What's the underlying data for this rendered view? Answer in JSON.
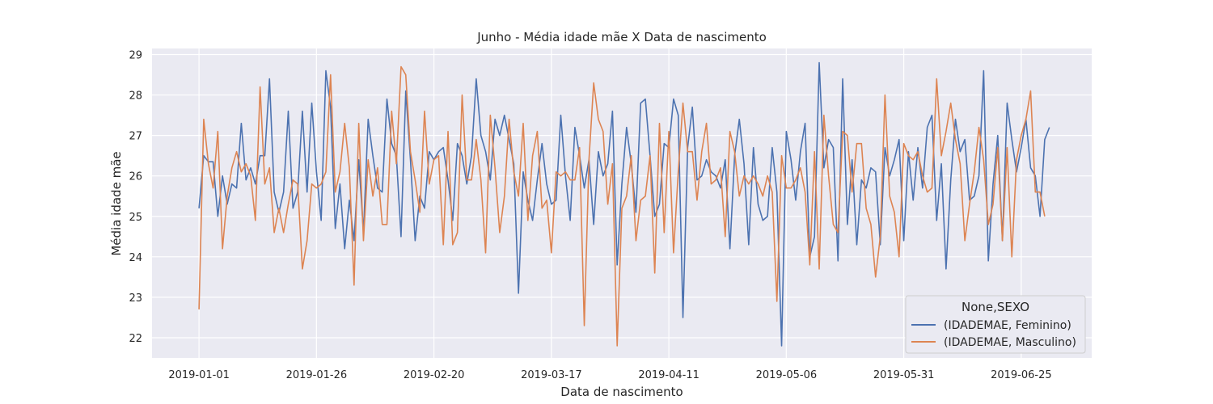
{
  "chart_data": {
    "type": "line",
    "title": "Junho - Média idade mãe X Data de nascimento",
    "xlabel": "Data de nascimento",
    "ylabel": "Média idade mãe",
    "x_start": "2019-01-01",
    "x_end": "2019-06-30",
    "xlim": [
      "2018-12-22",
      "2019-07-10"
    ],
    "ylim": [
      21.5,
      29.15
    ],
    "x_ticks": [
      "2019-01-01",
      "2019-01-26",
      "2019-02-20",
      "2019-03-17",
      "2019-04-11",
      "2019-05-06",
      "2019-05-31",
      "2019-06-25"
    ],
    "y_ticks": [
      22,
      23,
      24,
      25,
      26,
      27,
      28,
      29
    ],
    "grid": true,
    "legend": {
      "title": "None,SEXO",
      "position": "lower-right"
    },
    "series": [
      {
        "name": "(IDADEMAE, Feminino)",
        "color": "#4c72b0",
        "values": [
          25.2,
          26.5,
          26.35,
          26.35,
          25.0,
          26.0,
          25.3,
          25.8,
          25.7,
          27.3,
          25.9,
          26.2,
          25.8,
          26.5,
          26.5,
          28.4,
          25.6,
          25.1,
          25.6,
          27.6,
          25.2,
          25.6,
          27.6,
          25.6,
          27.8,
          26.1,
          24.9,
          28.6,
          27.7,
          24.7,
          25.8,
          24.2,
          25.4,
          24.4,
          26.4,
          24.6,
          27.4,
          26.5,
          25.7,
          25.6,
          27.9,
          26.8,
          26.5,
          24.5,
          28.1,
          26.4,
          24.4,
          25.5,
          25.2,
          26.6,
          26.4,
          26.6,
          26.7,
          25.9,
          24.9,
          26.8,
          26.5,
          25.8,
          26.5,
          28.4,
          27.0,
          26.6,
          25.9,
          27.4,
          27.0,
          27.5,
          26.9,
          26.3,
          23.1,
          26.1,
          25.4,
          24.9,
          25.9,
          26.8,
          25.8,
          25.3,
          25.4,
          27.5,
          26.0,
          24.9,
          27.2,
          26.5,
          25.7,
          26.4,
          24.8,
          26.6,
          26.0,
          26.3,
          27.6,
          23.8,
          25.8,
          27.2,
          26.3,
          25.1,
          27.8,
          27.9,
          26.5,
          25.0,
          25.3,
          26.8,
          26.7,
          27.9,
          27.5,
          22.5,
          26.7,
          27.7,
          25.9,
          26.0,
          26.4,
          26.1,
          26.0,
          25.7,
          26.4,
          24.2,
          26.5,
          27.4,
          26.3,
          24.3,
          26.7,
          25.3,
          24.9,
          25.0,
          26.7,
          25.6,
          21.8,
          27.1,
          26.4,
          25.4,
          26.6,
          27.3,
          24.0,
          24.5,
          28.8,
          26.2,
          26.9,
          26.7,
          23.9,
          28.4,
          24.8,
          26.4,
          24.3,
          25.9,
          25.7,
          26.2,
          26.1,
          24.3,
          26.7,
          26.0,
          26.4,
          26.9,
          24.4,
          26.6,
          25.4,
          26.7,
          25.7,
          27.2,
          27.5,
          24.9,
          26.3,
          23.7,
          25.9,
          27.4,
          26.6,
          26.9,
          25.4,
          25.5,
          26.0,
          28.6,
          23.9,
          25.8,
          27.0,
          24.4,
          27.8,
          26.9,
          26.1,
          26.7,
          27.4,
          26.2,
          26.0,
          25.0,
          26.9,
          27.2
        ]
      },
      {
        "name": "(IDADEMAE, Masculino)",
        "color": "#dd8452",
        "values": [
          22.7,
          27.4,
          26.3,
          25.7,
          27.1,
          24.2,
          25.5,
          26.2,
          26.6,
          26.1,
          26.3,
          26.0,
          24.9,
          28.2,
          25.8,
          26.2,
          24.6,
          25.2,
          24.6,
          25.3,
          25.9,
          25.8,
          23.7,
          24.4,
          25.8,
          25.7,
          25.8,
          26.1,
          28.5,
          25.6,
          26.1,
          27.3,
          26.2,
          23.3,
          27.3,
          24.4,
          26.4,
          25.5,
          26.2,
          24.8,
          24.8,
          27.6,
          26.3,
          28.7,
          28.5,
          26.6,
          25.9,
          25.1,
          27.6,
          25.8,
          26.4,
          26.5,
          24.3,
          27.1,
          24.3,
          24.6,
          28.0,
          25.9,
          25.9,
          26.9,
          25.9,
          24.1,
          27.5,
          26.2,
          24.6,
          25.5,
          27.4,
          26.1,
          25.5,
          27.3,
          24.9,
          26.5,
          27.1,
          25.2,
          25.4,
          24.1,
          26.1,
          26.0,
          26.1,
          25.9,
          25.9,
          26.7,
          22.3,
          26.4,
          28.3,
          27.4,
          27.1,
          25.3,
          26.3,
          21.8,
          25.2,
          25.5,
          26.5,
          24.4,
          25.4,
          25.5,
          26.5,
          23.6,
          27.3,
          24.6,
          27.1,
          24.1,
          26.1,
          27.8,
          26.6,
          26.6,
          25.4,
          26.6,
          27.3,
          25.8,
          25.9,
          26.2,
          24.5,
          27.1,
          26.6,
          25.5,
          26.0,
          25.8,
          26.0,
          25.8,
          25.5,
          26.0,
          25.6,
          22.9,
          26.5,
          25.7,
          25.7,
          25.9,
          26.2,
          25.6,
          23.8,
          26.6,
          23.7,
          27.5,
          26.0,
          24.8,
          24.6,
          27.1,
          27.0,
          25.6,
          26.8,
          26.8,
          25.2,
          24.8,
          23.5,
          24.5,
          28.0,
          25.5,
          25.1,
          24.0,
          26.8,
          26.5,
          26.4,
          26.6,
          26.0,
          25.6,
          25.7,
          28.4,
          26.5,
          27.1,
          27.8,
          26.9,
          26.3,
          24.4,
          25.3,
          26.1,
          27.2,
          26.4,
          24.8,
          25.3,
          26.7,
          24.4,
          26.7,
          24.0,
          26.4,
          27.0,
          27.4,
          28.1,
          25.6,
          25.6,
          25.0
        ]
      }
    ]
  }
}
